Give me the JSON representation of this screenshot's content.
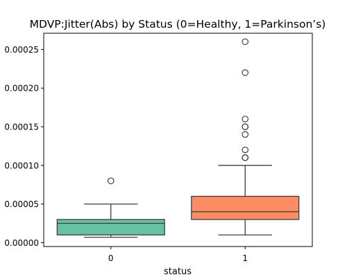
{
  "chart_data": {
    "type": "box",
    "title": "MDVP:Jitter(Abs) by Status (0=Healthy, 1=Parkinson’s)",
    "xlabel": "status",
    "ylabel": "",
    "ylim": [
      -5e-06,
      0.000271
    ],
    "yticks": [
      0.0,
      5e-05,
      0.0001,
      0.00015,
      0.0002,
      0.00025
    ],
    "ytick_labels": [
      "0.00000",
      "0.00005",
      "0.00010",
      "0.00015",
      "0.00020",
      "0.00025"
    ],
    "categories": [
      "0",
      "1"
    ],
    "colors": [
      "#66c2a5",
      "#fc8d62"
    ],
    "edge_color": "#3d3d3d",
    "grid": false,
    "series": [
      {
        "category": "0",
        "whisker_low": 7e-06,
        "q1": 1e-05,
        "median": 2.5e-05,
        "q3": 3e-05,
        "whisker_high": 5e-05,
        "outliers": [
          8e-05
        ]
      },
      {
        "category": "1",
        "whisker_low": 1e-05,
        "q1": 3e-05,
        "median": 4e-05,
        "q3": 6e-05,
        "whisker_high": 0.0001,
        "outliers": [
          0.00011,
          0.00011,
          0.00012,
          0.00014,
          0.00015,
          0.00015,
          0.00016,
          0.00022,
          0.00026
        ]
      }
    ]
  }
}
